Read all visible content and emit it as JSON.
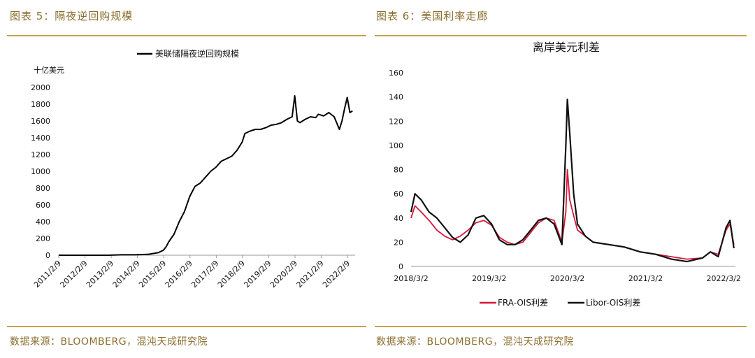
{
  "left": {
    "caption": "图表 5：隔夜逆回购规模",
    "source": "数据来源：BLOOMBERG，混沌天成研究院"
  },
  "right": {
    "caption": "图表 6：美国利率走廊",
    "source": "数据来源：BLOOMBERG，混沌天成研究院"
  },
  "colors": {
    "accent": "#c9a04c",
    "caption": "#8a6d2e",
    "fra": "#d6173a",
    "libor": "#111111"
  },
  "chart_data": [
    {
      "type": "line",
      "title": "",
      "ylabel": "十亿美元",
      "xlabel": "",
      "ylim": [
        0,
        2000
      ],
      "yticks": [
        0,
        200,
        400,
        600,
        800,
        1000,
        1200,
        1400,
        1600,
        1800,
        2000
      ],
      "xticks": [
        "2011/2/9",
        "2012/2/9",
        "2013/2/9",
        "2014/2/9",
        "2015/2/9",
        "2016/2/9",
        "2017/2/9",
        "2018/2/9",
        "2019/2/9",
        "2020/2/9",
        "2021/2/9",
        "2022/2/9"
      ],
      "legend": "top",
      "series": [
        {
          "name": "美联储隔夜逆回购规模",
          "x": [
            2011.11,
            2012.0,
            2013.0,
            2013.5,
            2014.0,
            2014.5,
            2014.9,
            2015.1,
            2015.2,
            2015.3,
            2015.5,
            2015.7,
            2015.9,
            2016.1,
            2016.3,
            2016.5,
            2016.7,
            2016.9,
            2017.1,
            2017.3,
            2017.5,
            2017.7,
            2017.9,
            2018.1,
            2018.2,
            2018.4,
            2018.6,
            2018.8,
            2019.0,
            2019.2,
            2019.4,
            2019.6,
            2019.8,
            2020.0,
            2020.1,
            2020.2,
            2020.3,
            2020.5,
            2020.7,
            2020.9,
            2021.0,
            2021.2,
            2021.4,
            2021.6,
            2021.8,
            2021.9,
            2022.0,
            2022.1,
            2022.2,
            2022.3
          ],
          "y": [
            0,
            0,
            0,
            5,
            5,
            10,
            30,
            60,
            100,
            160,
            250,
            400,
            520,
            700,
            820,
            860,
            930,
            1000,
            1050,
            1120,
            1150,
            1180,
            1250,
            1350,
            1450,
            1480,
            1500,
            1500,
            1520,
            1550,
            1560,
            1580,
            1620,
            1650,
            1900,
            1600,
            1580,
            1620,
            1650,
            1640,
            1680,
            1660,
            1700,
            1650,
            1500,
            1600,
            1750,
            1880,
            1700,
            1720
          ]
        }
      ]
    },
    {
      "type": "line",
      "title": "离岸美元利差",
      "ylim": [
        0,
        160
      ],
      "yticks": [
        0,
        20,
        40,
        60,
        80,
        100,
        120,
        140,
        160
      ],
      "xticks": [
        "2018/3/2",
        "2019/3/2",
        "2020/3/2",
        "2021/3/2",
        "2022/3/2"
      ],
      "legend": "bottom",
      "series": [
        {
          "name": "FRA-OIS利差",
          "x": [
            2018.17,
            2018.22,
            2018.3,
            2018.4,
            2018.5,
            2018.6,
            2018.7,
            2018.8,
            2018.9,
            2019.0,
            2019.1,
            2019.2,
            2019.3,
            2019.4,
            2019.5,
            2019.6,
            2019.7,
            2019.8,
            2019.9,
            2020.0,
            2020.1,
            2020.15,
            2020.17,
            2020.2,
            2020.25,
            2020.3,
            2020.4,
            2020.5,
            2020.7,
            2020.9,
            2021.1,
            2021.3,
            2021.5,
            2021.7,
            2021.9,
            2022.0,
            2022.1,
            2022.2,
            2022.25,
            2022.3
          ],
          "y": [
            40,
            50,
            45,
            38,
            30,
            25,
            22,
            25,
            30,
            36,
            38,
            34,
            24,
            20,
            18,
            20,
            28,
            36,
            40,
            38,
            20,
            45,
            80,
            55,
            42,
            30,
            25,
            20,
            18,
            16,
            12,
            10,
            8,
            6,
            7,
            12,
            10,
            30,
            35,
            18
          ]
        },
        {
          "name": "Libor-OIS利差",
          "x": [
            2018.17,
            2018.22,
            2018.3,
            2018.4,
            2018.5,
            2018.6,
            2018.7,
            2018.8,
            2018.9,
            2019.0,
            2019.1,
            2019.2,
            2019.3,
            2019.4,
            2019.5,
            2019.6,
            2019.7,
            2019.8,
            2019.9,
            2020.0,
            2020.1,
            2020.15,
            2020.17,
            2020.2,
            2020.25,
            2020.3,
            2020.4,
            2020.5,
            2020.7,
            2020.9,
            2021.1,
            2021.3,
            2021.5,
            2021.7,
            2021.9,
            2022.0,
            2022.1,
            2022.2,
            2022.25,
            2022.3
          ],
          "y": [
            45,
            60,
            55,
            45,
            40,
            32,
            24,
            20,
            26,
            40,
            42,
            35,
            22,
            18,
            18,
            22,
            30,
            38,
            40,
            35,
            18,
            100,
            138,
            110,
            60,
            35,
            25,
            20,
            18,
            16,
            12,
            10,
            6,
            4,
            7,
            12,
            8,
            32,
            38,
            15
          ]
        }
      ]
    }
  ]
}
